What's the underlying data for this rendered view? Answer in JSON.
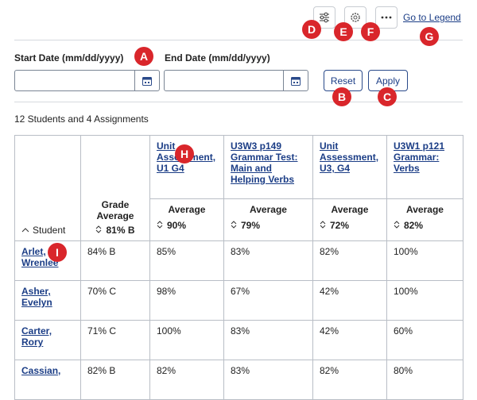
{
  "toolbar": {
    "legend_link": "Go to Legend"
  },
  "badges": [
    "A",
    "B",
    "C",
    "D",
    "E",
    "F",
    "G",
    "H",
    "I"
  ],
  "filters": {
    "start_label": "Start Date (mm/dd/yyyy)",
    "end_label": "End Date (mm/dd/yyyy)",
    "reset": "Reset",
    "apply": "Apply"
  },
  "summary": "12 Students and 4 Assignments",
  "table": {
    "student_header": "Student",
    "grade_header": "Grade Average",
    "grade_average": "81% B",
    "assignments": [
      {
        "name": "Unit Assessment, U1 G4",
        "label": "Average",
        "average": "90%"
      },
      {
        "name": "U3W3 p149 Grammar Test: Main and Helping Verbs",
        "label": "Average",
        "average": "79%"
      },
      {
        "name": "Unit Assessment, U3, G4",
        "label": "Average",
        "average": "72%"
      },
      {
        "name": "U3W1 p121 Grammar: Verbs",
        "label": "Average",
        "average": "82%"
      }
    ],
    "rows": [
      [
        "Arlet, Wrenlee",
        "84% B",
        "85%",
        "83%",
        "82%",
        "100%"
      ],
      [
        "Asher, Evelyn",
        "70% C",
        "98%",
        "67%",
        "42%",
        "100%"
      ],
      [
        "Carter, Rory",
        "71% C",
        "100%",
        "83%",
        "42%",
        "60%"
      ],
      [
        "Cassian,",
        "82% B",
        "82%",
        "83%",
        "82%",
        "80%"
      ]
    ]
  }
}
